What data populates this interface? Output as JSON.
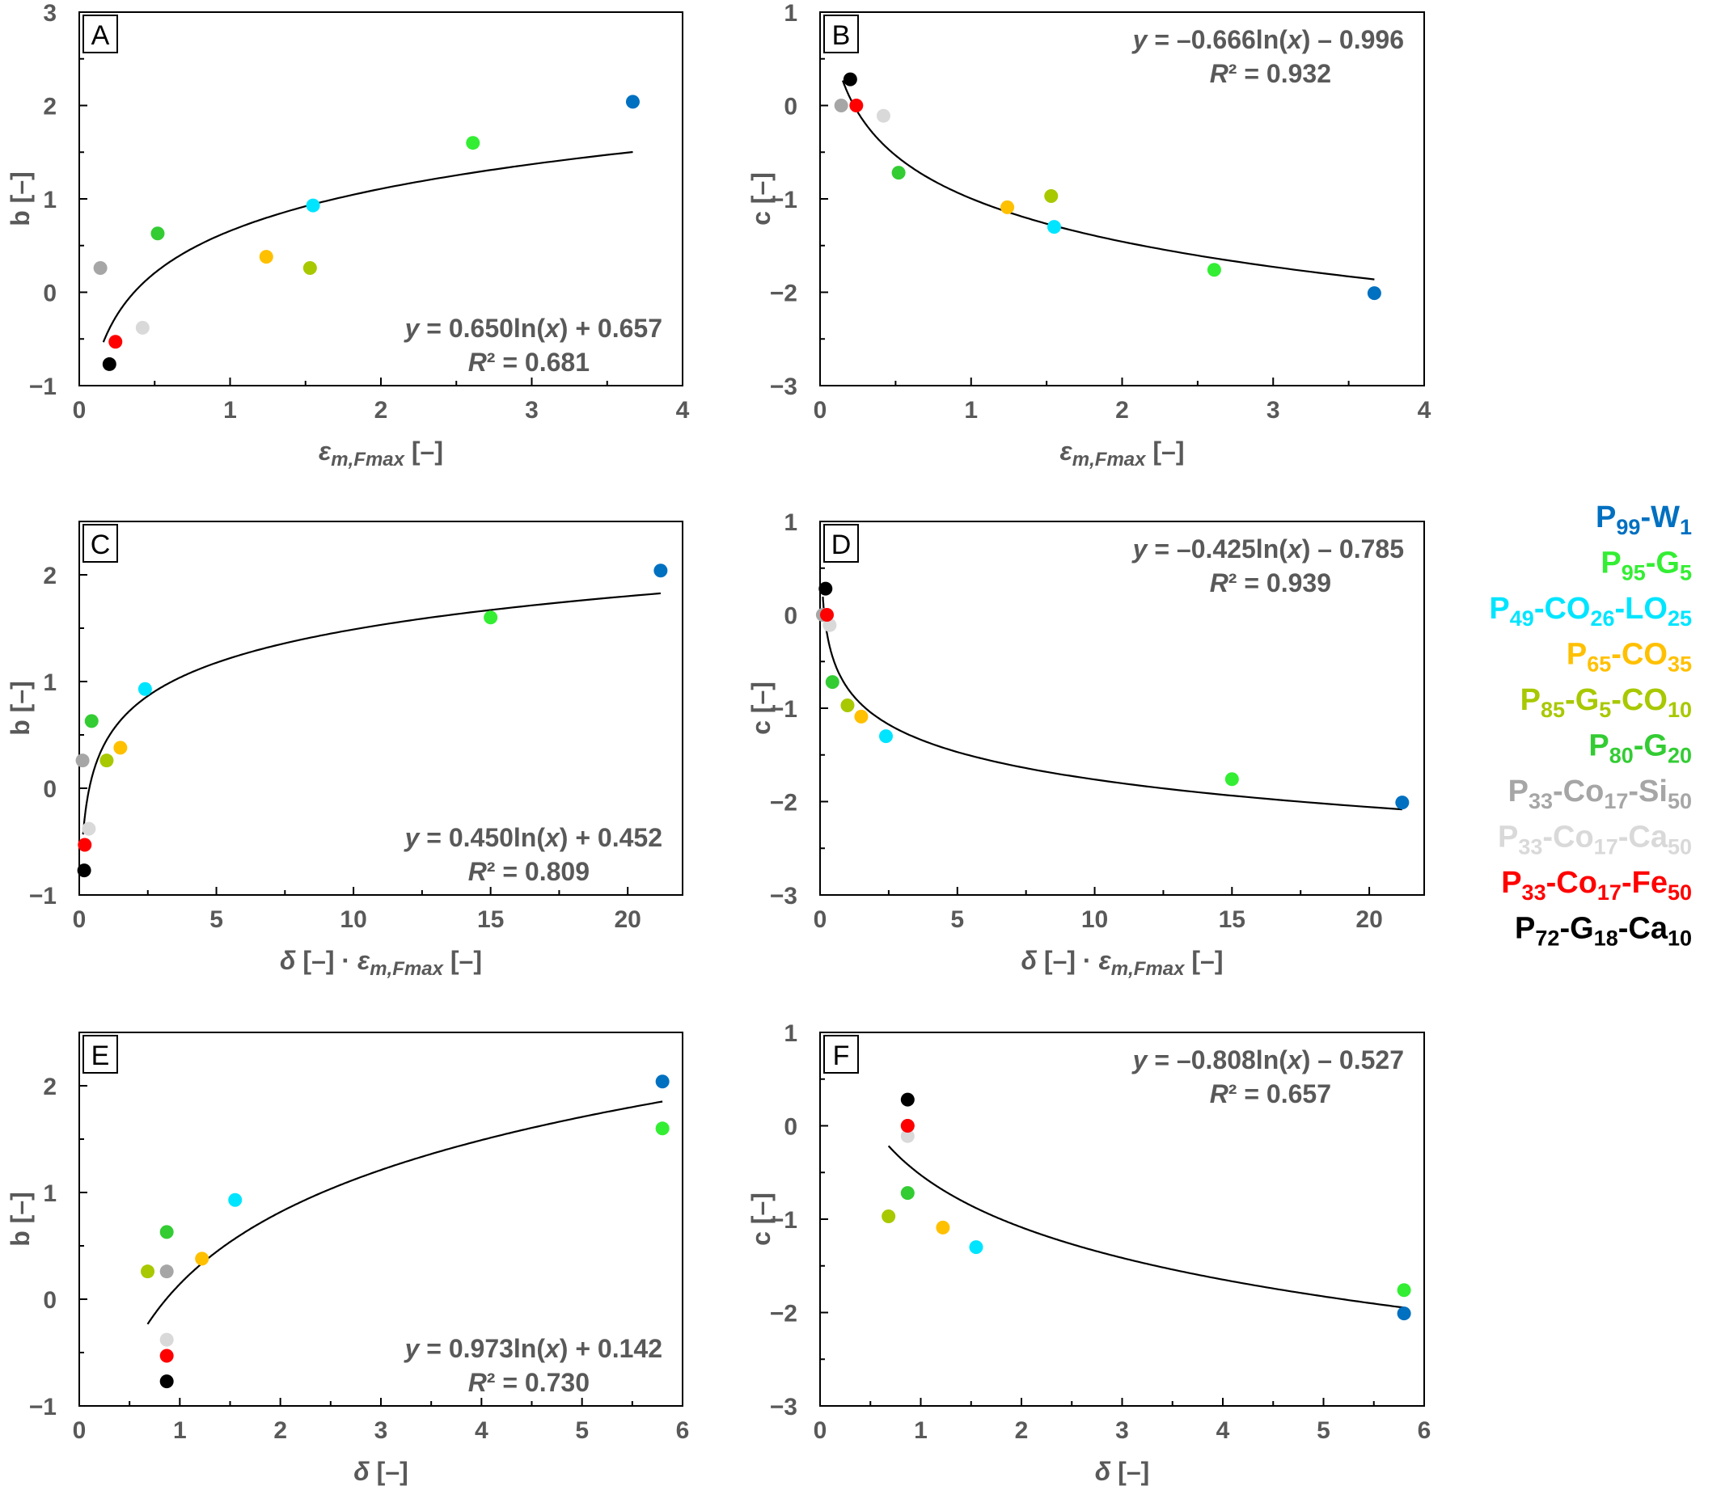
{
  "legend": [
    {
      "parts": [
        [
          "P",
          ""
        ],
        [
          "99",
          "sub"
        ],
        [
          "-W",
          ""
        ],
        [
          "1",
          "sub"
        ]
      ],
      "color": "#0070C0"
    },
    {
      "parts": [
        [
          "P",
          ""
        ],
        [
          "95",
          "sub"
        ],
        [
          "-G",
          ""
        ],
        [
          "5",
          "sub"
        ]
      ],
      "color": "#33EE33"
    },
    {
      "parts": [
        [
          "P",
          ""
        ],
        [
          "49",
          "sub"
        ],
        [
          "-CO",
          ""
        ],
        [
          "26",
          "sub"
        ],
        [
          "-LO",
          ""
        ],
        [
          "25",
          "sub"
        ]
      ],
      "color": "#00E5FF"
    },
    {
      "parts": [
        [
          "P",
          ""
        ],
        [
          "65",
          "sub"
        ],
        [
          "-CO",
          ""
        ],
        [
          "35",
          "sub"
        ]
      ],
      "color": "#FFC000"
    },
    {
      "parts": [
        [
          "P",
          ""
        ],
        [
          "85",
          "sub"
        ],
        [
          "-G",
          ""
        ],
        [
          "5",
          "sub"
        ],
        [
          "-CO",
          ""
        ],
        [
          "10",
          "sub"
        ]
      ],
      "color": "#A8C800"
    },
    {
      "parts": [
        [
          "P",
          ""
        ],
        [
          "80",
          "sub"
        ],
        [
          "-G",
          ""
        ],
        [
          "20",
          "sub"
        ]
      ],
      "color": "#33CC33"
    },
    {
      "parts": [
        [
          "P",
          ""
        ],
        [
          "33",
          "sub"
        ],
        [
          "-Co",
          ""
        ],
        [
          "17",
          "sub"
        ],
        [
          "-Si",
          ""
        ],
        [
          "50",
          "sub"
        ]
      ],
      "color": "#A6A6A6"
    },
    {
      "parts": [
        [
          "P",
          ""
        ],
        [
          "33",
          "sub"
        ],
        [
          "-Co",
          ""
        ],
        [
          "17",
          "sub"
        ],
        [
          "-Ca",
          ""
        ],
        [
          "50",
          "sub"
        ]
      ],
      "color": "#D9D9D9"
    },
    {
      "parts": [
        [
          "P",
          ""
        ],
        [
          "33",
          "sub"
        ],
        [
          "-Co",
          ""
        ],
        [
          "17",
          "sub"
        ],
        [
          "-Fe",
          ""
        ],
        [
          "50",
          "sub"
        ]
      ],
      "color": "#FF0000"
    },
    {
      "parts": [
        [
          "P",
          ""
        ],
        [
          "72",
          "sub"
        ],
        [
          "-G",
          ""
        ],
        [
          "18",
          "sub"
        ],
        [
          "-Ca",
          ""
        ],
        [
          "10",
          "sub"
        ]
      ],
      "color": "#000000"
    }
  ],
  "chart_data": [
    {
      "panel": "A",
      "type": "scatter",
      "xlabel": [
        [
          "ε",
          "it"
        ],
        [
          "m,Fmax",
          "itsub"
        ],
        [
          " [–]",
          ""
        ]
      ],
      "ylabel": "b [–]",
      "xlim": [
        0,
        4
      ],
      "ylim": [
        -1,
        3
      ],
      "xticks": [
        0,
        1,
        2,
        3,
        4
      ],
      "yticks": [
        -1,
        0,
        1,
        2,
        3
      ],
      "points": [
        [
          3.67,
          2.04
        ],
        [
          2.61,
          1.6
        ],
        [
          1.55,
          0.93
        ],
        [
          1.24,
          0.38
        ],
        [
          1.53,
          0.26
        ],
        [
          0.52,
          0.63
        ],
        [
          0.14,
          0.26
        ],
        [
          0.42,
          -0.38
        ],
        [
          0.24,
          -0.53
        ],
        [
          0.2,
          -0.77
        ]
      ],
      "fit": {
        "a": 0.65,
        "b": 0.657,
        "x_range": [
          0.16,
          3.67
        ]
      },
      "equation": [
        [
          "y",
          "it"
        ],
        [
          " = 0.650ln(",
          ""
        ],
        [
          "x",
          "it"
        ],
        [
          ") + 0.657",
          ""
        ]
      ],
      "r2": [
        [
          "R",
          "it"
        ],
        [
          "² = 0.681",
          ""
        ]
      ],
      "eq_position": "bottom-right"
    },
    {
      "panel": "B",
      "type": "scatter",
      "xlabel": [
        [
          "ε",
          "it"
        ],
        [
          "m,Fmax",
          "itsub"
        ],
        [
          " [–]",
          ""
        ]
      ],
      "ylabel": "c [–]",
      "xlim": [
        0,
        4
      ],
      "ylim": [
        -3,
        1
      ],
      "xticks": [
        0,
        1,
        2,
        3,
        4
      ],
      "yticks": [
        -3,
        -2,
        -1,
        0,
        1
      ],
      "points": [
        [
          3.67,
          -2.01
        ],
        [
          2.61,
          -1.76
        ],
        [
          1.55,
          -1.3
        ],
        [
          1.24,
          -1.09
        ],
        [
          1.53,
          -0.97
        ],
        [
          0.52,
          -0.72
        ],
        [
          0.14,
          0.0
        ],
        [
          0.42,
          -0.11
        ],
        [
          0.24,
          0.0
        ],
        [
          0.2,
          0.28
        ]
      ],
      "fit": {
        "a": -0.666,
        "b": -0.996,
        "x_range": [
          0.15,
          3.67
        ]
      },
      "equation": [
        [
          "y",
          "it"
        ],
        [
          " = –0.666ln(",
          ""
        ],
        [
          "x",
          "it"
        ],
        [
          ") – 0.996",
          ""
        ]
      ],
      "r2": [
        [
          "R",
          "it"
        ],
        [
          "² = 0.932",
          ""
        ]
      ],
      "eq_position": "top-right"
    },
    {
      "panel": "C",
      "type": "scatter",
      "xlabel": [
        [
          "δ",
          "it"
        ],
        [
          " [–] · ",
          ""
        ],
        [
          "ε",
          "it"
        ],
        [
          "m,Fmax",
          "itsub"
        ],
        [
          " [–]",
          ""
        ]
      ],
      "ylabel": "b [–]",
      "xlim": [
        0,
        22
      ],
      "ylim": [
        -1,
        2.5
      ],
      "xticks": [
        0,
        5,
        10,
        15,
        20
      ],
      "yticks": [
        -1,
        0,
        1,
        2
      ],
      "points": [
        [
          21.2,
          2.04
        ],
        [
          15.0,
          1.6
        ],
        [
          2.4,
          0.93
        ],
        [
          1.5,
          0.38
        ],
        [
          1.0,
          0.26
        ],
        [
          0.45,
          0.63
        ],
        [
          0.12,
          0.26
        ],
        [
          0.35,
          -0.38
        ],
        [
          0.2,
          -0.53
        ],
        [
          0.18,
          -0.77
        ]
      ],
      "fit": {
        "a": 0.45,
        "b": 0.452,
        "x_range": [
          0.14,
          21.2
        ]
      },
      "equation": [
        [
          "y",
          "it"
        ],
        [
          " = 0.450ln(",
          ""
        ],
        [
          "x",
          "it"
        ],
        [
          ") + 0.452",
          ""
        ]
      ],
      "r2": [
        [
          "R",
          "it"
        ],
        [
          "² = 0.809",
          ""
        ]
      ],
      "eq_position": "bottom-right"
    },
    {
      "panel": "D",
      "type": "scatter",
      "xlabel": [
        [
          "δ",
          "it"
        ],
        [
          " [–] · ",
          ""
        ],
        [
          "ε",
          "it"
        ],
        [
          "m,Fmax",
          "itsub"
        ],
        [
          " [–]",
          ""
        ]
      ],
      "ylabel": "c [–]",
      "xlim": [
        0,
        22
      ],
      "ylim": [
        -3,
        1
      ],
      "xticks": [
        0,
        5,
        10,
        15,
        20
      ],
      "yticks": [
        -3,
        -2,
        -1,
        0,
        1
      ],
      "points": [
        [
          21.2,
          -2.01
        ],
        [
          15.0,
          -1.76
        ],
        [
          2.4,
          -1.3
        ],
        [
          1.5,
          -1.09
        ],
        [
          1.0,
          -0.97
        ],
        [
          0.45,
          -0.72
        ],
        [
          0.1,
          0.0
        ],
        [
          0.35,
          -0.11
        ],
        [
          0.25,
          0.0
        ],
        [
          0.2,
          0.28
        ]
      ],
      "fit": {
        "a": -0.425,
        "b": -0.785,
        "x_range": [
          0.1,
          21.2
        ]
      },
      "equation": [
        [
          "y",
          "it"
        ],
        [
          " = –0.425ln(",
          ""
        ],
        [
          "x",
          "it"
        ],
        [
          ") – 0.785",
          ""
        ]
      ],
      "r2": [
        [
          "R",
          "it"
        ],
        [
          "² = 0.939",
          ""
        ]
      ],
      "eq_position": "top-right"
    },
    {
      "panel": "E",
      "type": "scatter",
      "xlabel": [
        [
          "δ",
          "it"
        ],
        [
          " [–]",
          ""
        ]
      ],
      "ylabel": "b [–]",
      "xlim": [
        0,
        6
      ],
      "ylim": [
        -1,
        2.5
      ],
      "xticks": [
        0,
        1,
        2,
        3,
        4,
        5,
        6
      ],
      "yticks": [
        -1,
        0,
        1,
        2
      ],
      "points": [
        [
          5.8,
          2.04
        ],
        [
          5.8,
          1.6
        ],
        [
          1.55,
          0.93
        ],
        [
          1.22,
          0.38
        ],
        [
          0.68,
          0.26
        ],
        [
          0.87,
          0.63
        ],
        [
          0.87,
          0.26
        ],
        [
          0.87,
          -0.38
        ],
        [
          0.87,
          -0.53
        ],
        [
          0.87,
          -0.77
        ]
      ],
      "fit": {
        "a": 0.973,
        "b": 0.142,
        "x_range": [
          0.68,
          5.8
        ]
      },
      "equation": [
        [
          "y",
          "it"
        ],
        [
          " = 0.973ln(",
          ""
        ],
        [
          "x",
          "it"
        ],
        [
          ") + 0.142",
          ""
        ]
      ],
      "r2": [
        [
          "R",
          "it"
        ],
        [
          "² = 0.730",
          ""
        ]
      ],
      "eq_position": "bottom-right"
    },
    {
      "panel": "F",
      "type": "scatter",
      "xlabel": [
        [
          "δ",
          "it"
        ],
        [
          " [–]",
          ""
        ]
      ],
      "ylabel": "c [–]",
      "xlim": [
        0,
        6
      ],
      "ylim": [
        -3,
        1
      ],
      "xticks": [
        0,
        1,
        2,
        3,
        4,
        5,
        6
      ],
      "yticks": [
        -3,
        -2,
        -1,
        0,
        1
      ],
      "points": [
        [
          5.8,
          -2.01
        ],
        [
          5.8,
          -1.76
        ],
        [
          1.55,
          -1.3
        ],
        [
          1.22,
          -1.09
        ],
        [
          0.68,
          -0.97
        ],
        [
          0.87,
          -0.72
        ],
        [
          0.87,
          0.0
        ],
        [
          0.87,
          -0.11
        ],
        [
          0.87,
          0.0
        ],
        [
          0.87,
          0.28
        ]
      ],
      "fit": {
        "a": -0.808,
        "b": -0.527,
        "x_range": [
          0.68,
          5.8
        ]
      },
      "equation": [
        [
          "y",
          "it"
        ],
        [
          " = –0.808ln(",
          ""
        ],
        [
          "x",
          "it"
        ],
        [
          ") – 0.527",
          ""
        ]
      ],
      "r2": [
        [
          "R",
          "it"
        ],
        [
          "² = 0.657",
          ""
        ]
      ],
      "eq_position": "top-right"
    }
  ]
}
